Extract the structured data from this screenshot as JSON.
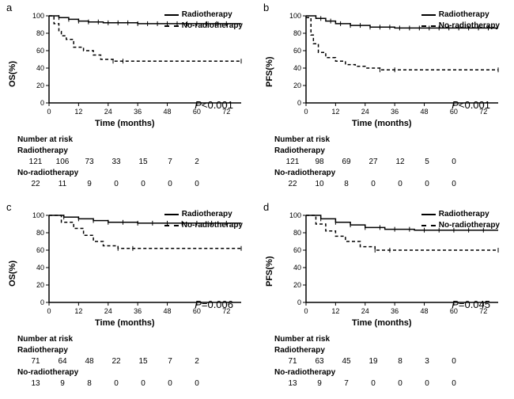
{
  "chart_type": "kaplan-meier-survival",
  "background_color": "#ffffff",
  "line_color": "#000000",
  "line_width": 1.5,
  "dash_pattern": "4,3",
  "font_family": "Arial",
  "label_fontsize": 11,
  "tick_fontsize": 9,
  "pvalue_fontsize": 13,
  "legend_fontsize": 10,
  "xlim": [
    0,
    78
  ],
  "ylim": [
    0,
    100
  ],
  "xticks": [
    0,
    12,
    24,
    36,
    48,
    60,
    72
  ],
  "yticks": [
    0,
    20,
    40,
    60,
    80,
    100
  ],
  "xlabel": "Time (months)",
  "legend": {
    "radiotherapy": "Radiotherapy",
    "no_radiotherapy": "No-radiotherapy"
  },
  "risk_header": "Number at risk",
  "risk_label_rt": "Radiotherapy",
  "risk_label_nort": "No-radiotherapy",
  "panels": {
    "a": {
      "label": "a",
      "ylabel": "OS(%)",
      "pvalue": "P<0.001",
      "series": {
        "radiotherapy": [
          [
            0,
            100
          ],
          [
            4,
            98
          ],
          [
            8,
            96
          ],
          [
            12,
            94
          ],
          [
            16,
            93
          ],
          [
            22,
            92
          ],
          [
            36,
            91
          ],
          [
            48,
            91
          ],
          [
            60,
            91
          ],
          [
            72,
            91
          ],
          [
            78,
            91
          ]
        ],
        "no_radiotherapy": [
          [
            0,
            100
          ],
          [
            2,
            91
          ],
          [
            4,
            82
          ],
          [
            5,
            77
          ],
          [
            7,
            73
          ],
          [
            10,
            64
          ],
          [
            14,
            60
          ],
          [
            18,
            55
          ],
          [
            21,
            50
          ],
          [
            26,
            48
          ],
          [
            78,
            48
          ]
        ]
      },
      "censor_rt": [
        4,
        8,
        12,
        16,
        20,
        24,
        28,
        32,
        36,
        40,
        44,
        48,
        52,
        56,
        60,
        64,
        68,
        72
      ],
      "censor_nort": [
        26,
        30,
        78
      ],
      "risk_rt": [
        121,
        106,
        73,
        33,
        15,
        7,
        2
      ],
      "risk_nort": [
        22,
        11,
        9,
        0,
        0,
        0,
        0
      ]
    },
    "b": {
      "label": "b",
      "ylabel": "PFS(%)",
      "pvalue": "P<0.001",
      "series": {
        "radiotherapy": [
          [
            0,
            100
          ],
          [
            4,
            97
          ],
          [
            8,
            94
          ],
          [
            12,
            91
          ],
          [
            18,
            89
          ],
          [
            26,
            87
          ],
          [
            36,
            86
          ],
          [
            48,
            86
          ],
          [
            60,
            86
          ],
          [
            72,
            86
          ],
          [
            78,
            86
          ]
        ],
        "no_radiotherapy": [
          [
            0,
            98
          ],
          [
            2,
            78
          ],
          [
            3,
            68
          ],
          [
            5,
            58
          ],
          [
            8,
            52
          ],
          [
            12,
            48
          ],
          [
            16,
            44
          ],
          [
            20,
            42
          ],
          [
            24,
            40
          ],
          [
            30,
            38
          ],
          [
            78,
            38
          ]
        ]
      },
      "censor_rt": [
        6,
        10,
        14,
        18,
        22,
        26,
        30,
        34,
        38,
        42,
        46,
        50,
        54,
        58,
        62,
        66,
        70,
        74
      ],
      "censor_nort": [
        30,
        36,
        78
      ],
      "risk_rt": [
        121,
        98,
        69,
        27,
        12,
        5,
        0
      ],
      "risk_nort": [
        22,
        10,
        8,
        0,
        0,
        0,
        0
      ]
    },
    "c": {
      "label": "c",
      "ylabel": "OS(%)",
      "pvalue": "P=0.006",
      "series": {
        "radiotherapy": [
          [
            0,
            100
          ],
          [
            6,
            98
          ],
          [
            12,
            96
          ],
          [
            18,
            94
          ],
          [
            24,
            92
          ],
          [
            36,
            91
          ],
          [
            48,
            91
          ],
          [
            60,
            91
          ],
          [
            72,
            91
          ],
          [
            78,
            91
          ]
        ],
        "no_radiotherapy": [
          [
            0,
            100
          ],
          [
            5,
            92
          ],
          [
            10,
            85
          ],
          [
            14,
            77
          ],
          [
            18,
            70
          ],
          [
            22,
            65
          ],
          [
            28,
            62
          ],
          [
            78,
            62
          ]
        ]
      },
      "censor_rt": [
        6,
        12,
        18,
        24,
        30,
        36,
        42,
        48,
        54,
        60,
        66,
        72
      ],
      "censor_nort": [
        28,
        34,
        78
      ],
      "risk_rt": [
        71,
        64,
        48,
        22,
        15,
        7,
        2
      ],
      "risk_nort": [
        13,
        9,
        8,
        0,
        0,
        0,
        0
      ]
    },
    "d": {
      "label": "d",
      "ylabel": "PFS(%)",
      "pvalue": "P=0.045",
      "series": {
        "radiotherapy": [
          [
            0,
            100
          ],
          [
            6,
            96
          ],
          [
            12,
            92
          ],
          [
            18,
            89
          ],
          [
            24,
            86
          ],
          [
            32,
            84
          ],
          [
            44,
            83
          ],
          [
            78,
            83
          ]
        ],
        "no_radiotherapy": [
          [
            0,
            100
          ],
          [
            4,
            90
          ],
          [
            8,
            82
          ],
          [
            12,
            76
          ],
          [
            16,
            70
          ],
          [
            22,
            64
          ],
          [
            28,
            60
          ],
          [
            78,
            60
          ]
        ]
      },
      "censor_rt": [
        6,
        12,
        18,
        24,
        30,
        36,
        42,
        48,
        54,
        60,
        66,
        72
      ],
      "censor_nort": [
        28,
        34,
        78
      ],
      "risk_rt": [
        71,
        63,
        45,
        19,
        8,
        3,
        0
      ],
      "risk_nort": [
        13,
        9,
        7,
        0,
        0,
        0,
        0
      ]
    }
  }
}
